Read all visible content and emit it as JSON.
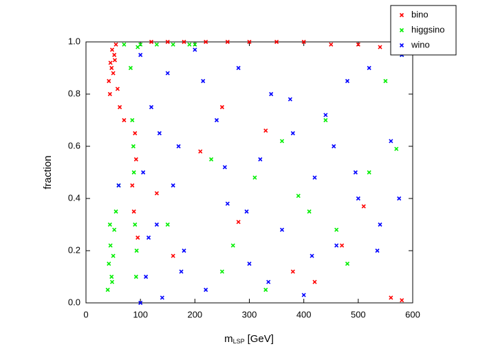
{
  "chart_data": {
    "type": "scatter",
    "xlabel": "m",
    "xlabel_sub": "LSP",
    "xlabel_unit": "[GeV]",
    "ylabel": "fraction",
    "xlim": [
      0,
      600
    ],
    "xticks": [
      0,
      100,
      200,
      300,
      400,
      500,
      600
    ],
    "ylim": [
      0,
      1
    ],
    "yticks": [
      {
        "value": 0,
        "label": "0.0"
      },
      0.2,
      0.4,
      0.6,
      0.8,
      {
        "value": 1,
        "label": "1.0"
      }
    ],
    "legend": "upper right",
    "series": [
      {
        "name": "bino",
        "color": "#ff0000",
        "x": [
          42,
          45,
          48,
          50,
          52,
          55,
          44,
          47,
          53,
          58,
          62,
          70,
          85,
          88,
          92,
          95,
          90,
          120,
          150,
          180,
          220,
          260,
          300,
          350,
          400,
          450,
          500,
          540,
          560,
          580,
          130,
          210,
          280,
          330,
          380,
          420,
          470,
          510,
          250,
          160
        ],
        "values": [
          0.85,
          0.92,
          0.97,
          0.88,
          0.95,
          0.99,
          0.8,
          0.9,
          0.93,
          0.82,
          0.75,
          0.7,
          0.45,
          0.35,
          0.55,
          0.25,
          0.65,
          1.0,
          1.0,
          1.0,
          1.0,
          1.0,
          1.0,
          1.0,
          1.0,
          0.99,
          0.99,
          0.98,
          0.02,
          0.01,
          0.42,
          0.58,
          0.31,
          0.66,
          0.12,
          0.08,
          0.22,
          0.37,
          0.75,
          0.18
        ]
      },
      {
        "name": "higgsino",
        "color": "#00ee00",
        "x": [
          40,
          42,
          45,
          47,
          50,
          52,
          44,
          48,
          55,
          60,
          82,
          85,
          88,
          90,
          92,
          95,
          87,
          93,
          70,
          100,
          130,
          160,
          190,
          200,
          150,
          230,
          270,
          310,
          360,
          410,
          440,
          480,
          520,
          550,
          570,
          580,
          250,
          330,
          390,
          460
        ],
        "values": [
          0.05,
          0.15,
          0.22,
          0.1,
          0.18,
          0.28,
          0.3,
          0.08,
          0.35,
          0.45,
          0.9,
          0.7,
          0.5,
          0.3,
          0.1,
          0.98,
          0.6,
          0.2,
          0.99,
          0.99,
          0.99,
          0.99,
          0.99,
          0.99,
          0.3,
          0.55,
          0.22,
          0.48,
          0.62,
          0.35,
          0.7,
          0.15,
          0.5,
          0.85,
          0.59,
          0.95,
          0.12,
          0.05,
          0.41,
          0.28
        ]
      },
      {
        "name": "wino",
        "color": "#0000ff",
        "x": [
          100,
          105,
          110,
          120,
          130,
          140,
          150,
          160,
          170,
          180,
          200,
          220,
          240,
          260,
          280,
          300,
          320,
          340,
          360,
          380,
          400,
          420,
          440,
          460,
          480,
          500,
          520,
          540,
          560,
          580,
          115,
          135,
          175,
          215,
          255,
          295,
          335,
          375,
          415,
          455,
          495,
          535,
          575,
          60,
          100
        ],
        "values": [
          0.95,
          0.5,
          0.1,
          0.75,
          0.3,
          0.02,
          0.88,
          0.45,
          0.6,
          0.2,
          0.97,
          0.05,
          0.7,
          0.38,
          0.9,
          0.15,
          0.55,
          0.8,
          0.28,
          0.65,
          0.03,
          0.48,
          0.72,
          0.22,
          0.85,
          0.4,
          0.9,
          0.3,
          0.62,
          0.95,
          0.25,
          0.65,
          0.12,
          0.85,
          0.52,
          0.35,
          0.08,
          0.78,
          0.18,
          0.6,
          0.5,
          0.2,
          0.4,
          0.45,
          0.0
        ]
      }
    ]
  }
}
